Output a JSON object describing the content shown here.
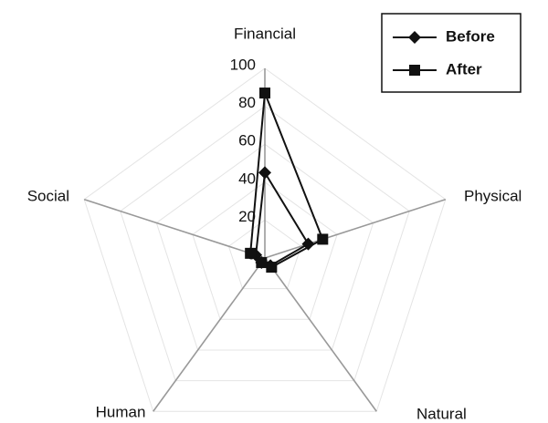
{
  "chart_data": {
    "type": "radar",
    "categories": [
      "Financial",
      "Physical",
      "Natural",
      "Human",
      "Social"
    ],
    "series": [
      {
        "name": "Before",
        "color": "#111111",
        "marker": "diamond",
        "values": [
          45,
          24,
          5,
          3,
          5
        ]
      },
      {
        "name": "After",
        "color": "#111111",
        "marker": "square",
        "values": [
          87,
          32,
          6,
          3,
          8
        ]
      }
    ],
    "rlim": [
      0,
      100
    ],
    "rticks": [
      0,
      20,
      40,
      60,
      80,
      100
    ],
    "grid": true,
    "legend": "top-right"
  }
}
